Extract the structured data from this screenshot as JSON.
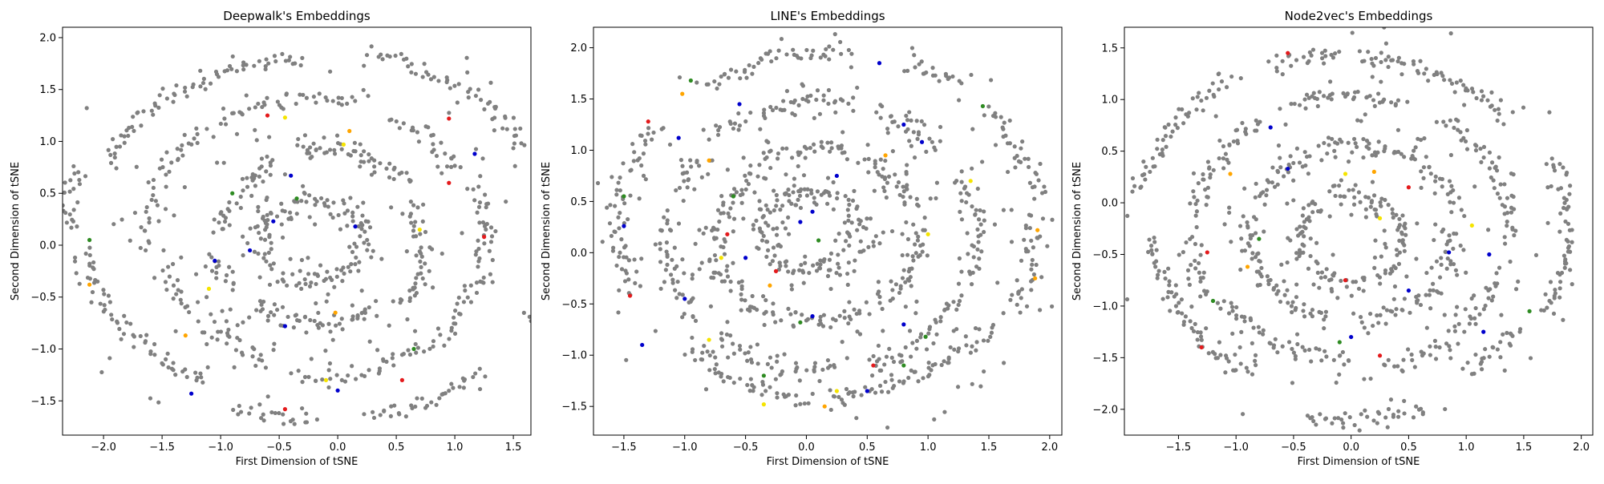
{
  "colors": {
    "background_points": "#808080",
    "highlight_red": "#e41a1c",
    "highlight_blue": "#0000cc",
    "highlight_green": "#2e8b22",
    "highlight_orange": "#ffa500",
    "highlight_yellow": "#f5e400"
  },
  "chart_data": [
    {
      "type": "scatter",
      "title": "Deepwalk's Embeddings",
      "xlabel": "First Dimension of tSNE",
      "ylabel": "Second Dimension of tSNE",
      "xlim": [
        -2.35,
        1.65
      ],
      "ylim": [
        -1.83,
        2.1
      ],
      "xticks": [
        -2.0,
        -1.5,
        -1.0,
        -0.5,
        0.0,
        0.5,
        1.0,
        1.5
      ],
      "yticks": [
        -1.5,
        -1.0,
        -0.5,
        0.0,
        0.5,
        1.0,
        1.5,
        2.0
      ],
      "grid": false,
      "structure": {
        "rings": [
          {
            "cx": -0.2,
            "cy": 0.15,
            "rx": 2.05,
            "ry": 1.75
          },
          {
            "cx": -0.15,
            "cy": 0.1,
            "rx": 1.45,
            "ry": 1.3
          },
          {
            "cx": -0.15,
            "cy": 0.05,
            "rx": 0.9,
            "ry": 0.85
          },
          {
            "cx": -0.2,
            "cy": 0.05,
            "rx": 0.45,
            "ry": 0.4
          }
        ],
        "points_per_ring": [
          320,
          240,
          170,
          90
        ],
        "scatter_points": 200,
        "noise": 0.045
      },
      "highlights": [
        {
          "color": "highlight_red",
          "x": -0.6,
          "y": 1.25
        },
        {
          "color": "highlight_red",
          "x": 0.95,
          "y": 1.22
        },
        {
          "color": "highlight_red",
          "x": 0.95,
          "y": 0.6
        },
        {
          "color": "highlight_red",
          "x": 1.25,
          "y": 0.08
        },
        {
          "color": "highlight_red",
          "x": 0.55,
          "y": -1.3
        },
        {
          "color": "highlight_red",
          "x": -0.45,
          "y": -1.58
        },
        {
          "color": "highlight_blue",
          "x": 1.17,
          "y": 0.88
        },
        {
          "color": "highlight_blue",
          "x": -0.4,
          "y": 0.67
        },
        {
          "color": "highlight_blue",
          "x": -0.55,
          "y": 0.23
        },
        {
          "color": "highlight_blue",
          "x": -0.75,
          "y": -0.05
        },
        {
          "color": "highlight_blue",
          "x": -1.05,
          "y": -0.15
        },
        {
          "color": "highlight_blue",
          "x": 0.0,
          "y": -1.4
        },
        {
          "color": "highlight_blue",
          "x": -1.25,
          "y": -1.43
        },
        {
          "color": "highlight_blue",
          "x": -0.45,
          "y": -0.78
        },
        {
          "color": "highlight_blue",
          "x": 0.15,
          "y": 0.18
        },
        {
          "color": "highlight_green",
          "x": -2.12,
          "y": 0.05
        },
        {
          "color": "highlight_green",
          "x": 0.65,
          "y": -1.0
        },
        {
          "color": "highlight_green",
          "x": -0.35,
          "y": 0.45
        },
        {
          "color": "highlight_green",
          "x": -0.9,
          "y": 0.5
        },
        {
          "color": "highlight_orange",
          "x": 0.1,
          "y": 1.1
        },
        {
          "color": "highlight_orange",
          "x": -2.12,
          "y": -0.38
        },
        {
          "color": "highlight_orange",
          "x": -1.3,
          "y": -0.87
        },
        {
          "color": "highlight_orange",
          "x": -0.02,
          "y": -0.65
        },
        {
          "color": "highlight_yellow",
          "x": -0.45,
          "y": 1.23
        },
        {
          "color": "highlight_yellow",
          "x": 0.7,
          "y": 0.15
        },
        {
          "color": "highlight_yellow",
          "x": -1.1,
          "y": -0.42
        },
        {
          "color": "highlight_yellow",
          "x": -0.1,
          "y": -1.3
        },
        {
          "color": "highlight_yellow",
          "x": 0.05,
          "y": 0.97
        }
      ]
    },
    {
      "type": "scatter",
      "title": "LINE's Embeddings",
      "xlabel": "First Dimension of tSNE",
      "ylabel": "Second Dimension of tSNE",
      "xlim": [
        -1.75,
        2.1
      ],
      "ylim": [
        -1.78,
        2.2
      ],
      "xticks": [
        -1.5,
        -1.0,
        -0.5,
        0.0,
        0.5,
        1.0,
        1.5,
        2.0
      ],
      "yticks": [
        -1.5,
        -1.0,
        -0.5,
        0.0,
        0.5,
        1.0,
        1.5,
        2.0
      ],
      "grid": false,
      "structure": {
        "rings": [
          {
            "cx": 0.2,
            "cy": 0.25,
            "rx": 1.72,
            "ry": 1.72
          },
          {
            "cx": 0.15,
            "cy": 0.2,
            "rx": 1.25,
            "ry": 1.3
          },
          {
            "cx": 0.1,
            "cy": 0.15,
            "rx": 0.85,
            "ry": 0.8
          },
          {
            "cx": 0.05,
            "cy": 0.2,
            "rx": 0.4,
            "ry": 0.4
          }
        ],
        "points_per_ring": [
          320,
          250,
          180,
          100
        ],
        "scatter_points": 260,
        "noise": 0.05
      },
      "highlights": [
        {
          "color": "highlight_red",
          "x": -1.3,
          "y": 1.28
        },
        {
          "color": "highlight_red",
          "x": -1.45,
          "y": -0.42
        },
        {
          "color": "highlight_red",
          "x": 0.55,
          "y": -1.1
        },
        {
          "color": "highlight_red",
          "x": -0.25,
          "y": -0.18
        },
        {
          "color": "highlight_red",
          "x": -0.65,
          "y": 0.18
        },
        {
          "color": "highlight_blue",
          "x": 0.6,
          "y": 1.85
        },
        {
          "color": "highlight_blue",
          "x": -0.55,
          "y": 1.45
        },
        {
          "color": "highlight_blue",
          "x": -1.05,
          "y": 1.12
        },
        {
          "color": "highlight_blue",
          "x": 0.8,
          "y": 1.25
        },
        {
          "color": "highlight_blue",
          "x": 0.95,
          "y": 1.08
        },
        {
          "color": "highlight_blue",
          "x": -1.5,
          "y": 0.26
        },
        {
          "color": "highlight_blue",
          "x": -0.05,
          "y": 0.3
        },
        {
          "color": "highlight_blue",
          "x": 0.05,
          "y": 0.4
        },
        {
          "color": "highlight_blue",
          "x": -0.5,
          "y": -0.05
        },
        {
          "color": "highlight_blue",
          "x": -1.0,
          "y": -0.45
        },
        {
          "color": "highlight_blue",
          "x": -1.35,
          "y": -0.9
        },
        {
          "color": "highlight_blue",
          "x": 0.05,
          "y": -0.62
        },
        {
          "color": "highlight_blue",
          "x": 0.5,
          "y": -1.35
        },
        {
          "color": "highlight_blue",
          "x": 0.8,
          "y": -0.7
        },
        {
          "color": "highlight_blue",
          "x": 0.25,
          "y": 0.75
        },
        {
          "color": "highlight_green",
          "x": -0.95,
          "y": 1.68
        },
        {
          "color": "highlight_green",
          "x": 1.45,
          "y": 1.43
        },
        {
          "color": "highlight_green",
          "x": -1.5,
          "y": 0.55
        },
        {
          "color": "highlight_green",
          "x": -0.6,
          "y": 0.55
        },
        {
          "color": "highlight_green",
          "x": 0.1,
          "y": 0.12
        },
        {
          "color": "highlight_green",
          "x": -0.35,
          "y": -1.2
        },
        {
          "color": "highlight_green",
          "x": -0.05,
          "y": -0.68
        },
        {
          "color": "highlight_green",
          "x": 0.98,
          "y": -0.82
        },
        {
          "color": "highlight_green",
          "x": 0.8,
          "y": -1.1
        },
        {
          "color": "highlight_orange",
          "x": -1.02,
          "y": 1.55
        },
        {
          "color": "highlight_orange",
          "x": -0.8,
          "y": 0.9
        },
        {
          "color": "highlight_orange",
          "x": -0.3,
          "y": -0.32
        },
        {
          "color": "highlight_orange",
          "x": 0.15,
          "y": -1.5
        },
        {
          "color": "highlight_orange",
          "x": 1.9,
          "y": 0.22
        },
        {
          "color": "highlight_orange",
          "x": 1.88,
          "y": -0.25
        },
        {
          "color": "highlight_orange",
          "x": 0.65,
          "y": 0.95
        },
        {
          "color": "highlight_yellow",
          "x": 1.0,
          "y": 0.18
        },
        {
          "color": "highlight_yellow",
          "x": -0.7,
          "y": -0.05
        },
        {
          "color": "highlight_yellow",
          "x": -0.8,
          "y": -0.85
        },
        {
          "color": "highlight_yellow",
          "x": 0.25,
          "y": -1.35
        },
        {
          "color": "highlight_yellow",
          "x": 1.35,
          "y": 0.7
        },
        {
          "color": "highlight_yellow",
          "x": -0.35,
          "y": -1.48
        }
      ]
    },
    {
      "type": "scatter",
      "title": "Node2vec's Embeddings",
      "xlabel": "First Dimension of tSNE",
      "ylabel": "Second Dimension of tSNE",
      "xlim": [
        -1.97,
        2.1
      ],
      "ylim": [
        -2.25,
        1.7
      ],
      "xticks": [
        -1.5,
        -1.0,
        -0.5,
        0.0,
        0.5,
        1.0,
        1.5,
        2.0
      ],
      "yticks": [
        -2.0,
        -1.5,
        -1.0,
        -0.5,
        0.0,
        0.5,
        1.0,
        1.5
      ],
      "grid": false,
      "structure": {
        "rings": [
          {
            "cx": 0.0,
            "cy": -0.27,
            "rx": 1.8,
            "ry": 1.75
          },
          {
            "cx": 0.0,
            "cy": -0.27,
            "rx": 1.35,
            "ry": 1.3
          },
          {
            "cx": 0.0,
            "cy": -0.3,
            "rx": 0.9,
            "ry": 0.85
          },
          {
            "cx": 0.0,
            "cy": -0.35,
            "rx": 0.45,
            "ry": 0.45
          }
        ],
        "points_per_ring": [
          330,
          250,
          180,
          100
        ],
        "scatter_points": 200,
        "noise": 0.045
      },
      "highlights": [
        {
          "color": "highlight_red",
          "x": -0.55,
          "y": 1.45
        },
        {
          "color": "highlight_red",
          "x": -1.3,
          "y": -1.4
        },
        {
          "color": "highlight_red",
          "x": -1.25,
          "y": -0.48
        },
        {
          "color": "highlight_red",
          "x": 0.5,
          "y": 0.15
        },
        {
          "color": "highlight_red",
          "x": -0.05,
          "y": -0.75
        },
        {
          "color": "highlight_red",
          "x": 0.25,
          "y": -1.48
        },
        {
          "color": "highlight_blue",
          "x": -0.7,
          "y": 0.73
        },
        {
          "color": "highlight_blue",
          "x": -0.55,
          "y": 0.33
        },
        {
          "color": "highlight_blue",
          "x": 1.2,
          "y": -0.5
        },
        {
          "color": "highlight_blue",
          "x": 0.85,
          "y": -0.48
        },
        {
          "color": "highlight_blue",
          "x": 0.0,
          "y": -1.3
        },
        {
          "color": "highlight_blue",
          "x": 1.15,
          "y": -1.25
        },
        {
          "color": "highlight_blue",
          "x": 0.5,
          "y": -0.85
        },
        {
          "color": "highlight_green",
          "x": -1.2,
          "y": -0.95
        },
        {
          "color": "highlight_green",
          "x": -0.1,
          "y": -1.35
        },
        {
          "color": "highlight_green",
          "x": 1.55,
          "y": -1.05
        },
        {
          "color": "highlight_green",
          "x": -0.8,
          "y": -0.35
        },
        {
          "color": "highlight_orange",
          "x": -1.05,
          "y": 0.28
        },
        {
          "color": "highlight_orange",
          "x": -0.9,
          "y": -0.62
        },
        {
          "color": "highlight_orange",
          "x": 0.2,
          "y": 0.3
        },
        {
          "color": "highlight_yellow",
          "x": -0.05,
          "y": 0.28
        },
        {
          "color": "highlight_yellow",
          "x": 1.05,
          "y": -0.22
        },
        {
          "color": "highlight_yellow",
          "x": 0.25,
          "y": -0.15
        }
      ]
    }
  ]
}
